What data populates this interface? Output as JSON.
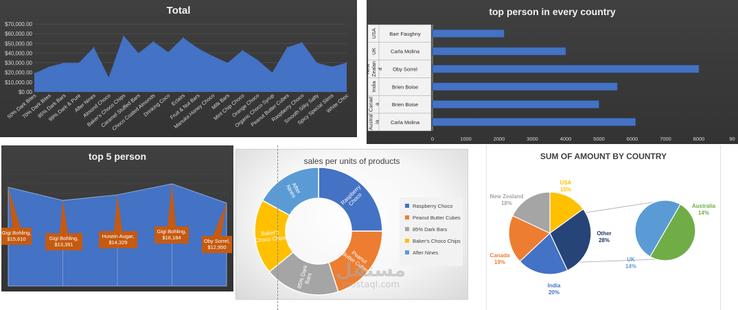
{
  "chart_data": [
    {
      "type": "area",
      "title": "Total",
      "categories": [
        "50% Dark Bites",
        "70% Dark Bites",
        "85% Dark Bars",
        "99% Dark & Pure",
        "After Nines",
        "Almond Choco",
        "Baker's Choco Chips",
        "Caramel Stuffed Bars",
        "Choco Coated Almonds",
        "Drinking Coco",
        "Eclairs",
        "Fruit & Nut Bars",
        "Manuka Honey Choco",
        "Milk Bars",
        "Mint Chip Choco",
        "Orange Choco",
        "Organic Choco Syrup",
        "Peanut Butter Cubes",
        "Raspberry Choco",
        "Smooth Sliky Salty",
        "Spicy Special Slims",
        "White Choc"
      ],
      "values": [
        19000,
        26000,
        30000,
        30000,
        46000,
        15000,
        58000,
        40000,
        52000,
        41000,
        56000,
        45000,
        37000,
        30000,
        43000,
        33000,
        20000,
        46000,
        51000,
        30000,
        26000,
        30000
      ],
      "yticks": [
        "$0.00",
        "$10,000.00",
        "$20,000.00",
        "$30,000.00",
        "$40,000.00",
        "$50,000.00",
        "$60,000.00",
        "$70,000.00"
      ],
      "ylim": [
        0,
        75000
      ],
      "color": "#4472c4"
    },
    {
      "type": "bar",
      "orientation": "horizontal",
      "title": "top person in every country",
      "groups": [
        {
          "country": "USA",
          "person": "Barr Faughny",
          "value": 2150
        },
        {
          "country": "UK",
          "person": "Carla Molina",
          "value": 4000
        },
        {
          "country": "New Zealand",
          "country_lines": [
            "New",
            "Zealan",
            "d"
          ],
          "person": "Oby Sorrel",
          "value": 8000
        },
        {
          "country": "India",
          "person": "Brien Boise",
          "value": 5550
        },
        {
          "country": "Canada",
          "country_lines": [
            "Canad",
            "a"
          ],
          "person": "Brien Boise",
          "value": 5000
        },
        {
          "country": "Australia",
          "country_lines": [
            "Austral",
            "ia"
          ],
          "person": "Carla Molina",
          "value": 6100
        }
      ],
      "xticks": [
        "0",
        "1000",
        "2000",
        "3000",
        "4000",
        "5000",
        "6000",
        "7000",
        "8000",
        "90"
      ],
      "xlim": [
        0,
        9000
      ],
      "color": "#4472c4"
    },
    {
      "type": "area",
      "title": "top 5 person",
      "points": [
        {
          "name": "Gigi Bohling",
          "value": 15610,
          "label": [
            "Gigi Bohling,",
            "$15,610"
          ]
        },
        {
          "name": "Gigi Bohling",
          "value": 13391,
          "label": [
            "Gigi Bohling,",
            "$13,391"
          ]
        },
        {
          "name": "Husein Augar",
          "value": 14329,
          "label": [
            "Husein Augar,",
            "$14,329"
          ]
        },
        {
          "name": "Gigi Bohling",
          "value": 16184,
          "label": [
            "Gigi Bohling,",
            "$16,184"
          ]
        },
        {
          "name": "Oby Sorrel",
          "value": 12950,
          "label": [
            "Oby Sorrel,",
            "$12,950"
          ]
        }
      ],
      "color": "#4472c4",
      "label_color": "#c55a11"
    },
    {
      "type": "pie",
      "style": "doughnut",
      "title": "sales per units of products",
      "slices": [
        {
          "name": "Raspberry Choco",
          "value": 25,
          "label": [
            "Raspberry",
            "Choco"
          ],
          "color": "#4472c4"
        },
        {
          "name": "Peanut Butter Cubes",
          "value": 20,
          "label": [
            "Peanut",
            "Butter Cubes"
          ],
          "color": "#ed7d31"
        },
        {
          "name": "85% Dark Bars",
          "value": 19,
          "label": [
            "85% Dark",
            "Bars"
          ],
          "color": "#a5a5a5"
        },
        {
          "name": "Baker's Choco Chips",
          "value": 19,
          "label": [
            "Baker's",
            "Choco Chips"
          ],
          "color": "#ffc000"
        },
        {
          "name": "After Nines",
          "value": 17,
          "label": [
            "After",
            "Nines"
          ],
          "color": "#5b9bd5"
        }
      ],
      "legend": "right"
    },
    {
      "type": "pie",
      "style": "pie-of-pie",
      "title": "SUM OF AMOUNT BY COUNTRY",
      "main": [
        {
          "name": "USA",
          "pct": "15%",
          "value": 15,
          "color": "#ffc000",
          "label_color": "#ffc000"
        },
        {
          "name": "Other",
          "pct": "28%",
          "value": 28,
          "color": "#264478",
          "label_color": "#1f3864"
        },
        {
          "name": "India",
          "pct": "20%",
          "value": 20,
          "color": "#4472c4",
          "label_color": "#4472c4"
        },
        {
          "name": "Canada",
          "pct": "19%",
          "value": 19,
          "color": "#ed7d31",
          "label_color": "#ed7d31"
        },
        {
          "name": "New Zealand",
          "pct": "18%",
          "value": 18,
          "color": "#a5a5a5",
          "label_color": "#a5a5a5"
        }
      ],
      "secondary": [
        {
          "name": "Australia",
          "pct": "14%",
          "value": 14,
          "color": "#70ad47",
          "label_color": "#70ad47"
        },
        {
          "name": "UK",
          "pct": "14%",
          "value": 14,
          "color": "#5b9bd5",
          "label_color": "#5b9bd5"
        }
      ]
    }
  ],
  "watermark": {
    "arabic": "مستقل",
    "url": "mostaql.com"
  }
}
